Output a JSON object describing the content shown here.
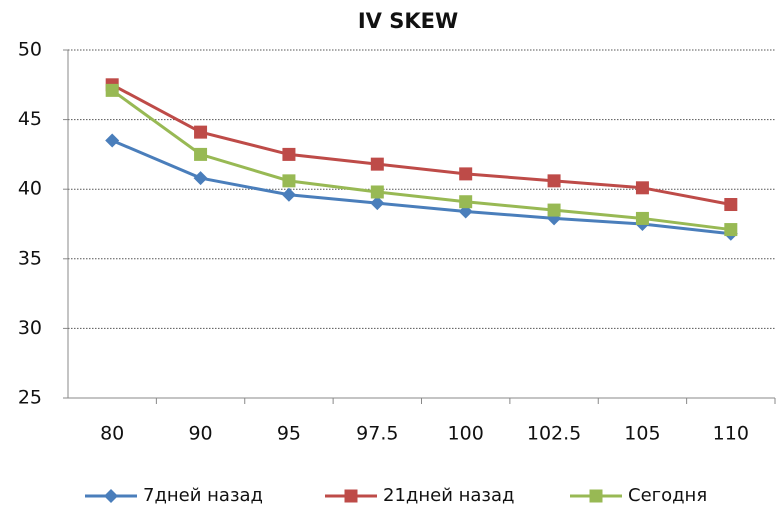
{
  "chart_data": {
    "type": "line",
    "title": "IV SKEW",
    "categories": [
      "80",
      "90",
      "95",
      "97.5",
      "100",
      "102.5",
      "105",
      "110"
    ],
    "series": [
      {
        "name": "7дней назад",
        "color": "#4a7ebb",
        "marker": "diamond",
        "values": [
          43.5,
          40.8,
          39.6,
          39.0,
          38.4,
          37.9,
          37.5,
          36.8
        ]
      },
      {
        "name": "21дней назад",
        "color": "#be4b48",
        "marker": "square",
        "values": [
          47.5,
          44.1,
          42.5,
          41.8,
          41.1,
          40.6,
          40.1,
          38.9
        ]
      },
      {
        "name": "Сегодня",
        "color": "#98b954",
        "marker": "square",
        "values": [
          47.1,
          42.5,
          40.6,
          39.8,
          39.1,
          38.5,
          37.9,
          37.1
        ]
      }
    ],
    "ylim": [
      25,
      50
    ],
    "yticks": [
      25,
      30,
      35,
      40,
      45,
      50
    ],
    "grid": true,
    "legend": "bottom"
  }
}
